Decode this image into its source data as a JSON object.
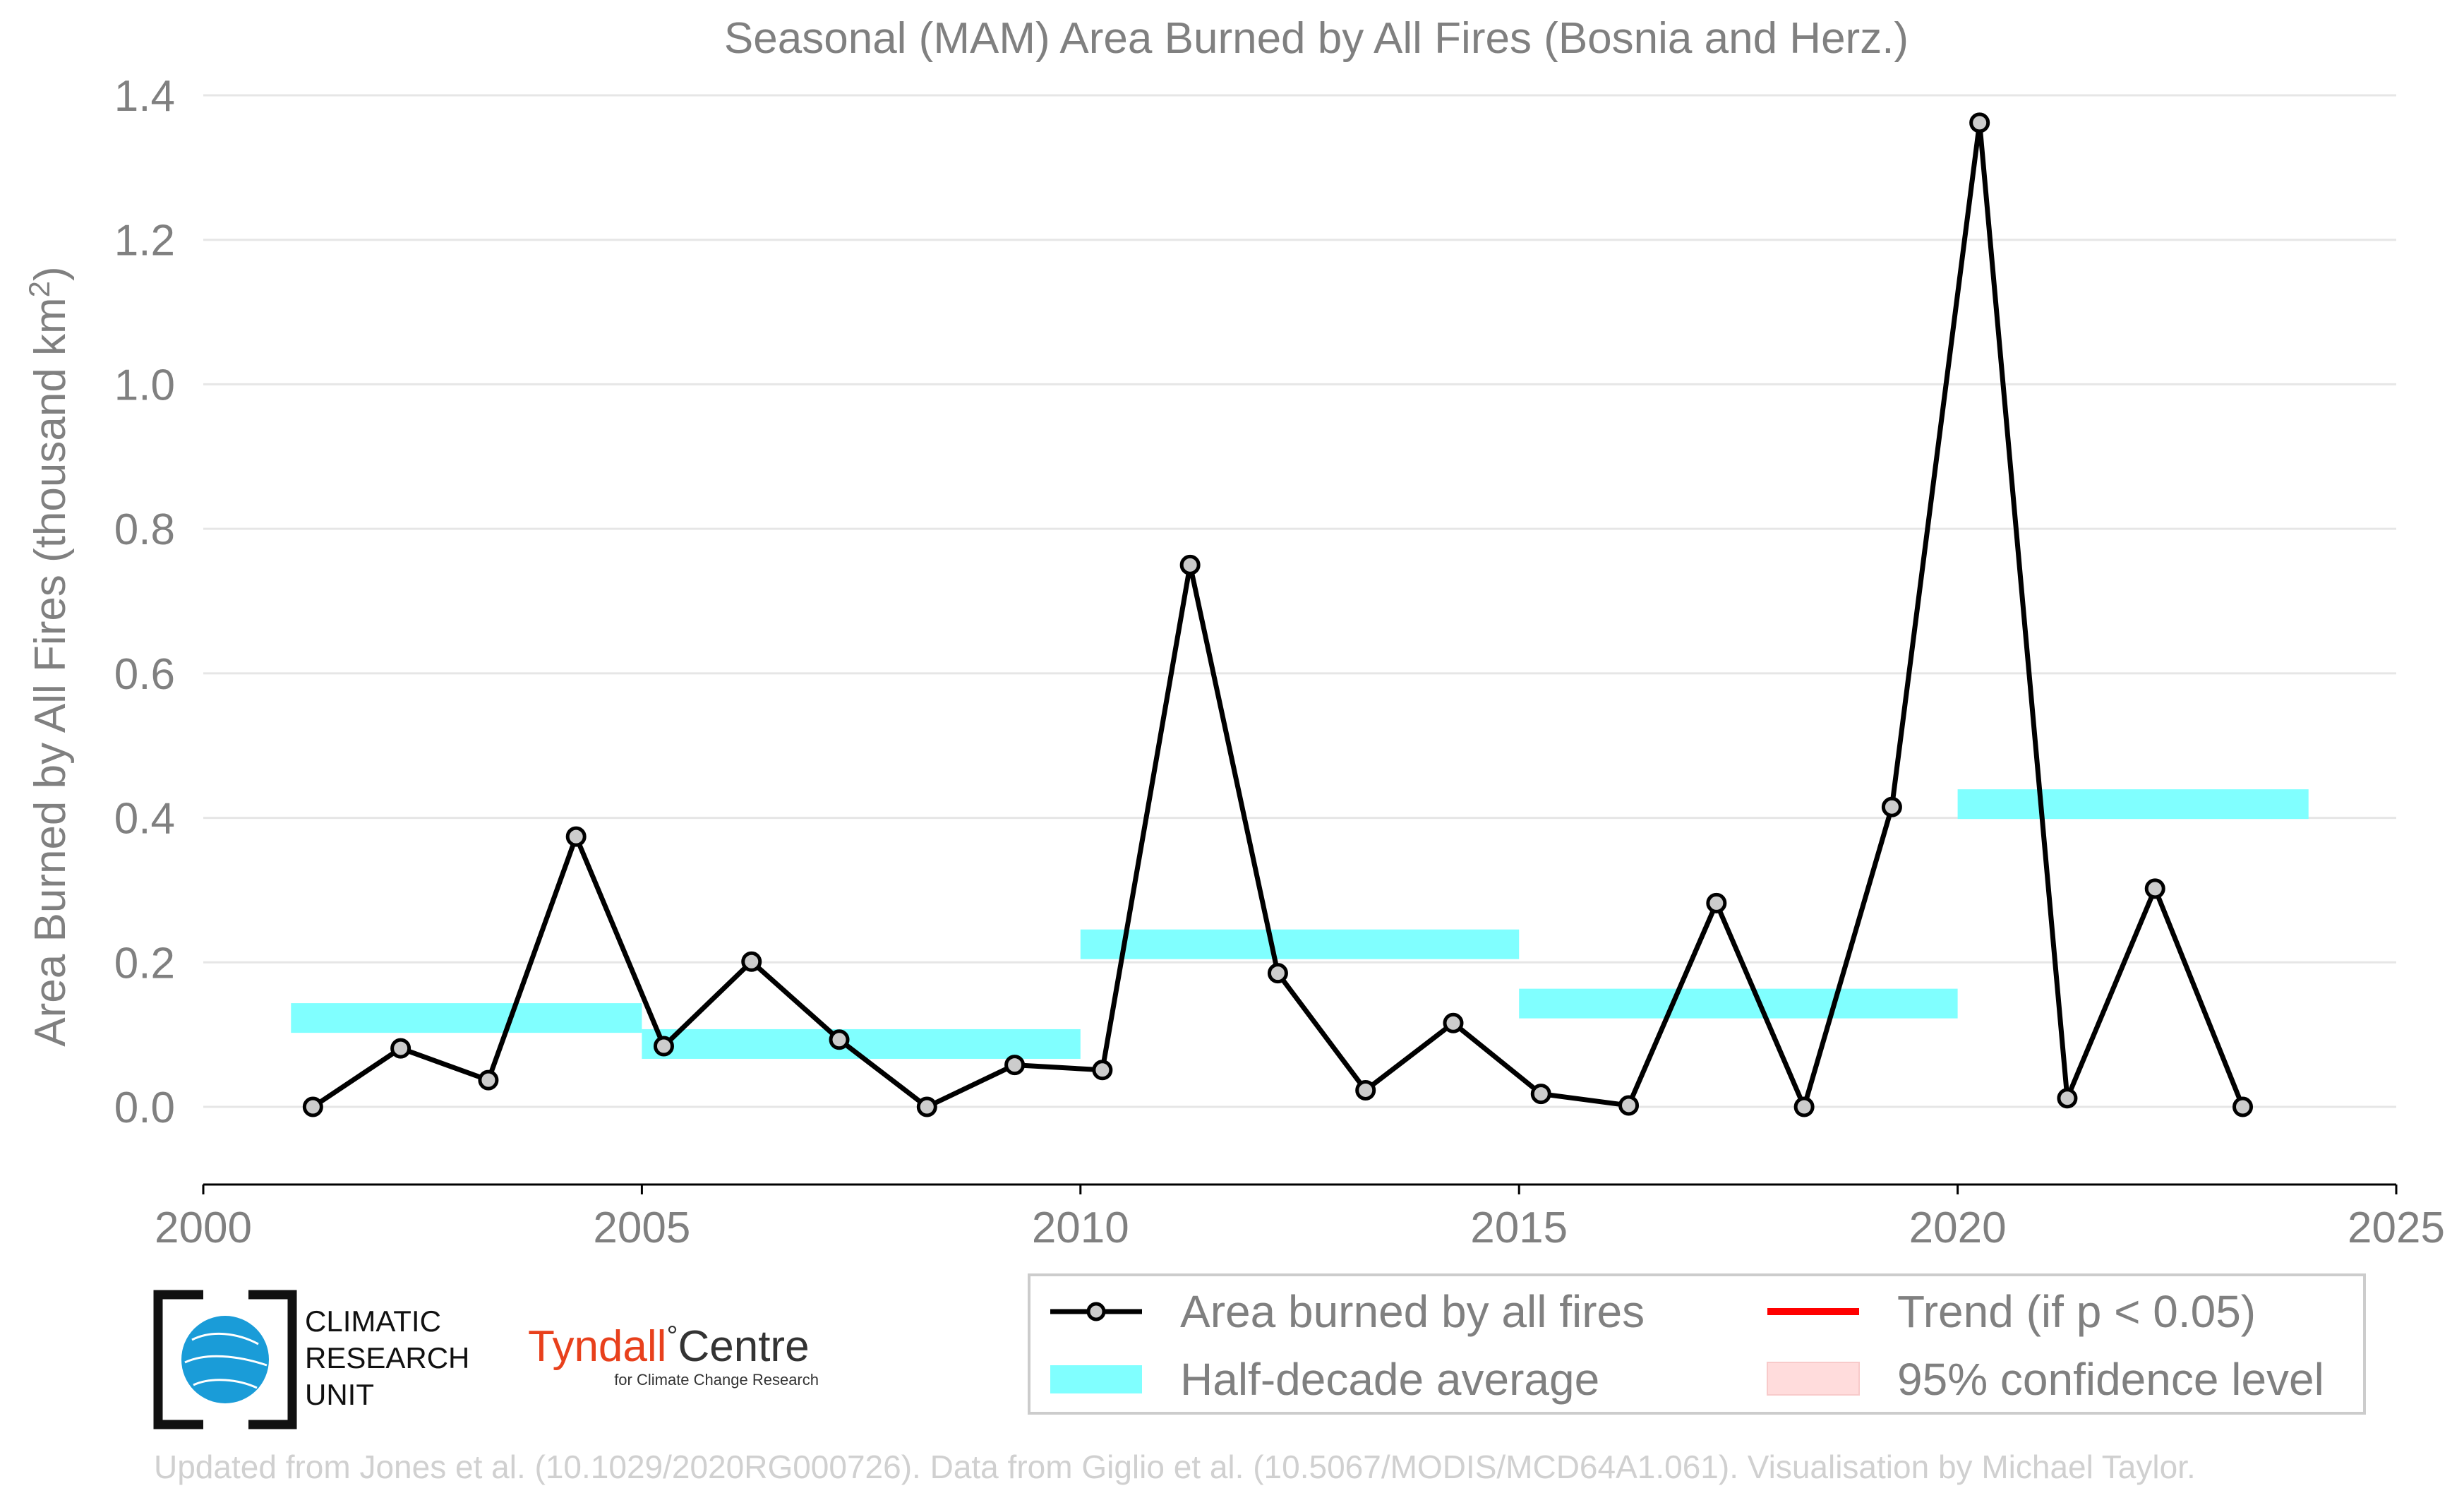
{
  "chart_data": {
    "type": "line",
    "title": "Seasonal (MAM) Area Burned by All Fires (Bosnia and Herz.)",
    "ylabel_main": "Area Burned by All Fires (thousand km",
    "ylabel_sup": "2",
    "ylabel_end": ")",
    "xlim": [
      2000,
      2025
    ],
    "ylim": [
      -0.1,
      1.4
    ],
    "xticks": [
      2000,
      2005,
      2010,
      2015,
      2020,
      2025
    ],
    "yticks": [
      0.0,
      0.2,
      0.4,
      0.6,
      0.8,
      1.0,
      1.2,
      1.4
    ],
    "ytick_labels": [
      "0.0",
      "0.2",
      "0.4",
      "0.6",
      "0.8",
      "1.0",
      "1.2",
      "1.4"
    ],
    "grid": "horizontal",
    "series": [
      {
        "name": "Area burned by all fires",
        "color": "#000000",
        "marker_fill": "#cccccc",
        "x": [
          2001.25,
          2002.25,
          2003.25,
          2004.25,
          2005.25,
          2006.25,
          2007.25,
          2008.25,
          2009.25,
          2010.25,
          2011.25,
          2012.25,
          2013.25,
          2014.25,
          2015.25,
          2016.25,
          2017.25,
          2018.25,
          2019.25,
          2020.25,
          2021.25,
          2022.25,
          2023.25
        ],
        "y": [
          0.0,
          0.081,
          0.037,
          0.374,
          0.084,
          0.201,
          0.093,
          0.0,
          0.058,
          0.051,
          0.75,
          0.185,
          0.023,
          0.116,
          0.018,
          0.002,
          0.282,
          0.0,
          0.415,
          1.362,
          0.012,
          0.302,
          0.0
        ]
      }
    ],
    "half_decade_averages": [
      {
        "start": 2001,
        "end": 2005,
        "value": 0.123
      },
      {
        "start": 2005,
        "end": 2010,
        "value": 0.087
      },
      {
        "start": 2010,
        "end": 2015,
        "value": 0.225
      },
      {
        "start": 2015,
        "end": 2020,
        "value": 0.143
      },
      {
        "start": 2020,
        "end": 2024,
        "value": 0.419
      }
    ],
    "half_decade_color": "#80ffff",
    "trend_color": "#ff0000",
    "confidence_color": "#ffdcdc",
    "legend": {
      "placement": "bottom-right",
      "entries": [
        {
          "key": "series",
          "label": "Area burned by all fires"
        },
        {
          "key": "trend",
          "label": "Trend (if p < 0.05)"
        },
        {
          "key": "halfdecade",
          "label": "Half-decade average"
        },
        {
          "key": "confidence",
          "label": "95% confidence level"
        }
      ]
    }
  },
  "logos": {
    "cru_lines": [
      "CLIMATIC",
      "RESEARCH",
      "UNIT"
    ],
    "tyndall_name_a": "Tyndall",
    "tyndall_degree": "°",
    "tyndall_name_b": "Centre",
    "tyndall_sub": "for Climate Change Research"
  },
  "credit": "Updated from Jones et al. (10.1029/2020RG000726). Data from Giglio et al. (10.5067/MODIS/MCD64A1.061). Visualisation by Michael Taylor."
}
